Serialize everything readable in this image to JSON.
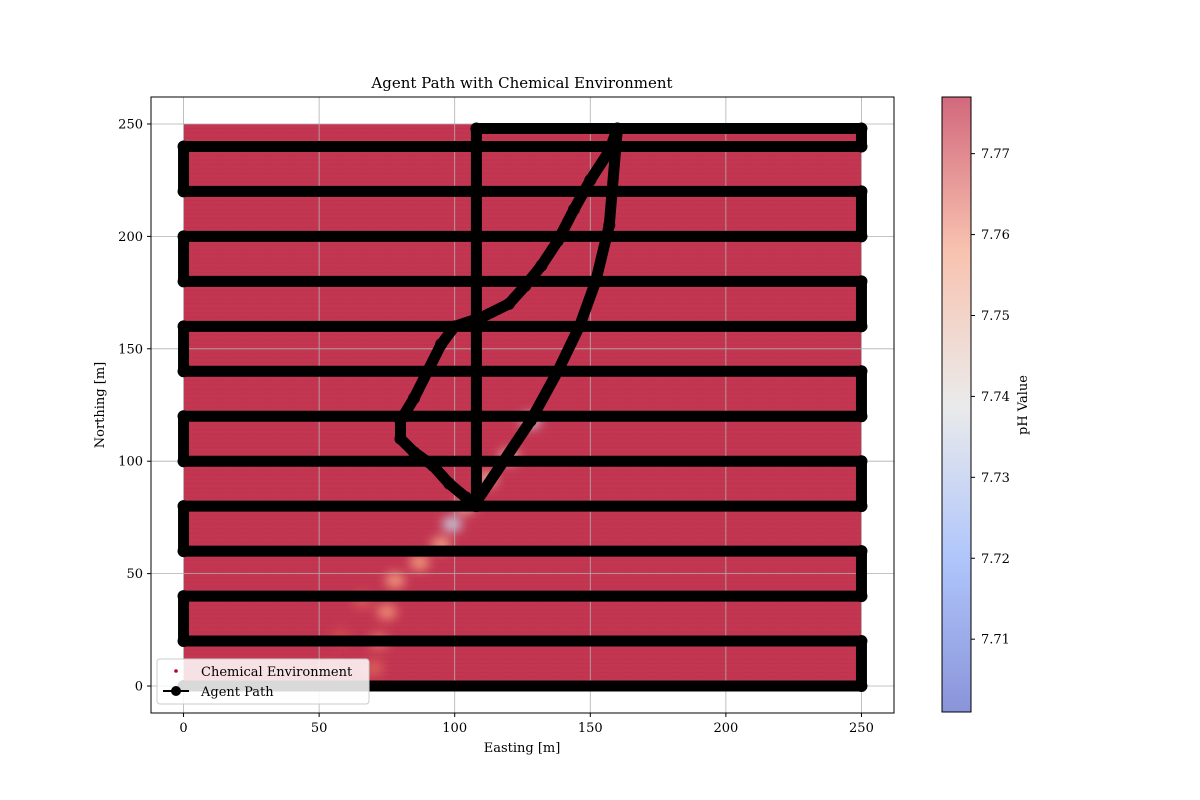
{
  "chart_data": {
    "type": "scatter",
    "title": "Agent Path with Chemical Environment",
    "xlabel": "Easting [m]",
    "ylabel": "Northing [m]",
    "xlim": [
      -12,
      262
    ],
    "ylim": [
      -12,
      262
    ],
    "xticks": [
      0,
      50,
      100,
      150,
      200,
      250
    ],
    "yticks": [
      0,
      50,
      100,
      150,
      200,
      250
    ],
    "grid": true,
    "legend_location": "lower-left",
    "legend": [
      "Chemical Environment",
      "Agent Path"
    ],
    "colorbar": {
      "label": "pH Value",
      "range": [
        7.701,
        7.777
      ],
      "ticks": [
        7.71,
        7.72,
        7.73,
        7.74,
        7.75,
        7.76,
        7.77
      ],
      "colormap": "coolwarm",
      "alpha": 0.6
    },
    "environment": {
      "name": "Chemical Environment",
      "x_range": [
        0,
        250
      ],
      "y_range": [
        0,
        250
      ],
      "background_ph": 7.777,
      "plume": [
        {
          "x": 128,
          "y": 118,
          "ph": 7.735
        },
        {
          "x": 120,
          "y": 102,
          "ph": 7.748
        },
        {
          "x": 112,
          "y": 92,
          "ph": 7.752
        },
        {
          "x": 104,
          "y": 80,
          "ph": 7.75
        },
        {
          "x": 99,
          "y": 72,
          "ph": 7.735
        },
        {
          "x": 95,
          "y": 63,
          "ph": 7.755
        },
        {
          "x": 87,
          "y": 55,
          "ph": 7.757
        },
        {
          "x": 78,
          "y": 47,
          "ph": 7.757
        },
        {
          "x": 75,
          "y": 33,
          "ph": 7.759
        },
        {
          "x": 72,
          "y": 20,
          "ph": 7.762
        },
        {
          "x": 70,
          "y": 8,
          "ph": 7.765
        },
        {
          "x": 66,
          "y": 38,
          "ph": 7.766
        },
        {
          "x": 58,
          "y": 22,
          "ph": 7.768
        },
        {
          "x": 54,
          "y": 8,
          "ph": 7.769
        }
      ]
    },
    "agent_path": {
      "name": "Agent Path",
      "x": [
        0,
        250,
        250,
        0,
        0,
        250,
        250,
        0,
        0,
        250,
        250,
        0,
        0,
        250,
        250,
        0,
        0,
        250,
        250,
        0,
        0,
        250,
        250,
        0,
        0,
        250,
        250,
        108,
        108,
        128,
        138,
        146,
        152,
        157,
        160
      ],
      "y": [
        0,
        0,
        20,
        20,
        40,
        40,
        60,
        60,
        80,
        80,
        100,
        100,
        120,
        120,
        140,
        140,
        160,
        160,
        180,
        180,
        200,
        200,
        220,
        220,
        240,
        240,
        248,
        248,
        82,
        118,
        140,
        160,
        180,
        205,
        248
      ]
    },
    "agent_path_return": {
      "name": "Agent Path",
      "x": [
        160,
        157,
        150,
        144,
        138,
        132,
        126,
        120,
        110,
        100,
        95,
        90,
        85,
        80,
        80,
        85,
        92,
        98,
        104,
        108
      ],
      "y": [
        248,
        238,
        225,
        212,
        198,
        187,
        178,
        170,
        164,
        160,
        152,
        140,
        128,
        118,
        110,
        104,
        98,
        90,
        84,
        80
      ]
    }
  }
}
